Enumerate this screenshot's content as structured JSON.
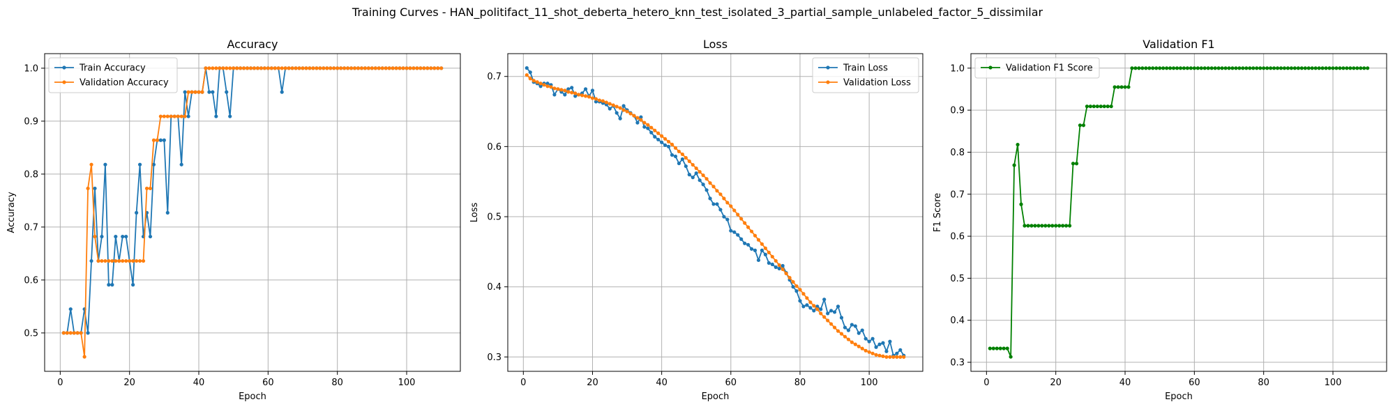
{
  "suptitle": "Training Curves - HAN_politifact_11_shot_deberta_hetero_knn_test_isolated_3_partial_sample_unlabeled_factor_5_dissimilar",
  "colors": {
    "train": "#1f77b4",
    "val": "#ff7f0e",
    "f1": "#008000",
    "grid": "#b0b0b0"
  },
  "chart_data": [
    {
      "type": "line",
      "title": "Accuracy",
      "xlabel": "Epoch",
      "ylabel": "Accuracy",
      "xlim": [
        -4.5,
        115.5
      ],
      "ylim": [
        0.4275,
        1.0275
      ],
      "xticks": [
        0,
        20,
        40,
        60,
        80,
        100
      ],
      "yticks": [
        0.5,
        0.6,
        0.7,
        0.8,
        0.9,
        1.0
      ],
      "ytick_labels": [
        "0.5",
        "0.6",
        "0.7",
        "0.8",
        "0.9",
        "1.0"
      ],
      "grid": true,
      "legend": "upper-left",
      "series": [
        {
          "name": "Train Accuracy",
          "color": "#1f77b4",
          "x_start": 1,
          "values": [
            0.5,
            0.5,
            0.545,
            0.5,
            0.5,
            0.5,
            0.545,
            0.5,
            0.636,
            0.773,
            0.636,
            0.682,
            0.818,
            0.591,
            0.591,
            0.682,
            0.636,
            0.682,
            0.682,
            0.636,
            0.591,
            0.727,
            0.818,
            0.682,
            0.727,
            0.682,
            0.818,
            0.864,
            0.864,
            0.864,
            0.727,
            0.909,
            0.909,
            0.909,
            0.818,
            0.955,
            0.909,
            0.955,
            0.955,
            0.955,
            0.955,
            1.0,
            0.955,
            0.955,
            0.909,
            1.0,
            1.0,
            0.955,
            0.909,
            1.0,
            1.0,
            1.0,
            1.0,
            1.0,
            1.0,
            1.0,
            1.0,
            1.0,
            1.0,
            1.0,
            1.0,
            1.0,
            1.0,
            0.955,
            1.0,
            1.0,
            1.0,
            1.0,
            1.0,
            1.0,
            1.0,
            1.0,
            1.0,
            1.0,
            1.0,
            1.0,
            1.0,
            1.0,
            1.0,
            1.0,
            1.0,
            1.0,
            1.0,
            1.0,
            1.0,
            1.0,
            1.0,
            1.0,
            1.0,
            1.0,
            1.0,
            1.0,
            1.0,
            1.0,
            1.0,
            1.0,
            1.0,
            1.0,
            1.0,
            1.0,
            1.0,
            1.0,
            1.0,
            1.0,
            1.0,
            1.0,
            1.0,
            1.0,
            1.0,
            1.0
          ]
        },
        {
          "name": "Validation Accuracy",
          "color": "#ff7f0e",
          "x_start": 1,
          "values": [
            0.5,
            0.5,
            0.5,
            0.5,
            0.5,
            0.5,
            0.455,
            0.773,
            0.818,
            0.682,
            0.636,
            0.636,
            0.636,
            0.636,
            0.636,
            0.636,
            0.636,
            0.636,
            0.636,
            0.636,
            0.636,
            0.636,
            0.636,
            0.636,
            0.773,
            0.773,
            0.864,
            0.864,
            0.909,
            0.909,
            0.909,
            0.909,
            0.909,
            0.909,
            0.909,
            0.909,
            0.955,
            0.955,
            0.955,
            0.955,
            0.955,
            1.0,
            1.0,
            1.0,
            1.0,
            1.0,
            1.0,
            1.0,
            1.0,
            1.0,
            1.0,
            1.0,
            1.0,
            1.0,
            1.0,
            1.0,
            1.0,
            1.0,
            1.0,
            1.0,
            1.0,
            1.0,
            1.0,
            1.0,
            1.0,
            1.0,
            1.0,
            1.0,
            1.0,
            1.0,
            1.0,
            1.0,
            1.0,
            1.0,
            1.0,
            1.0,
            1.0,
            1.0,
            1.0,
            1.0,
            1.0,
            1.0,
            1.0,
            1.0,
            1.0,
            1.0,
            1.0,
            1.0,
            1.0,
            1.0,
            1.0,
            1.0,
            1.0,
            1.0,
            1.0,
            1.0,
            1.0,
            1.0,
            1.0,
            1.0,
            1.0,
            1.0,
            1.0,
            1.0,
            1.0,
            1.0,
            1.0,
            1.0,
            1.0,
            1.0
          ]
        }
      ]
    },
    {
      "type": "line",
      "title": "Loss",
      "xlabel": "Epoch",
      "ylabel": "Loss",
      "xlim": [
        -4.5,
        115.5
      ],
      "ylim": [
        0.2795,
        0.7325
      ],
      "xticks": [
        0,
        20,
        40,
        60,
        80,
        100
      ],
      "yticks": [
        0.3,
        0.4,
        0.5,
        0.6,
        0.7
      ],
      "ytick_labels": [
        "0.3",
        "0.4",
        "0.5",
        "0.6",
        "0.7"
      ],
      "grid": true,
      "legend": "upper-right",
      "series": [
        {
          "name": "Train Loss",
          "color": "#1f77b4",
          "x_start": 1,
          "values": [
            0.712,
            0.706,
            0.692,
            0.69,
            0.686,
            0.69,
            0.69,
            0.688,
            0.674,
            0.682,
            0.678,
            0.674,
            0.682,
            0.684,
            0.672,
            0.674,
            0.676,
            0.682,
            0.672,
            0.68,
            0.664,
            0.664,
            0.662,
            0.66,
            0.654,
            0.658,
            0.648,
            0.64,
            0.658,
            0.652,
            0.648,
            0.644,
            0.634,
            0.642,
            0.628,
            0.626,
            0.62,
            0.614,
            0.61,
            0.606,
            0.602,
            0.6,
            0.588,
            0.586,
            0.576,
            0.582,
            0.572,
            0.56,
            0.556,
            0.562,
            0.552,
            0.546,
            0.538,
            0.526,
            0.518,
            0.518,
            0.51,
            0.5,
            0.496,
            0.48,
            0.478,
            0.474,
            0.468,
            0.462,
            0.46,
            0.454,
            0.452,
            0.438,
            0.452,
            0.446,
            0.434,
            0.432,
            0.428,
            0.426,
            0.43,
            0.42,
            0.41,
            0.4,
            0.394,
            0.38,
            0.372,
            0.374,
            0.37,
            0.366,
            0.372,
            0.368,
            0.382,
            0.362,
            0.366,
            0.364,
            0.372,
            0.356,
            0.342,
            0.338,
            0.346,
            0.344,
            0.334,
            0.338,
            0.326,
            0.322,
            0.326,
            0.314,
            0.318,
            0.32,
            0.308,
            0.322,
            0.302,
            0.305,
            0.31,
            0.302
          ]
        },
        {
          "name": "Validation Loss",
          "color": "#ff7f0e",
          "x_start": 1,
          "values": [
            0.702,
            0.697,
            0.694,
            0.692,
            0.69,
            0.688,
            0.686,
            0.685,
            0.683,
            0.682,
            0.681,
            0.68,
            0.678,
            0.677,
            0.676,
            0.674,
            0.673,
            0.672,
            0.671,
            0.669,
            0.668,
            0.666,
            0.665,
            0.663,
            0.661,
            0.659,
            0.657,
            0.655,
            0.652,
            0.65,
            0.647,
            0.644,
            0.641,
            0.638,
            0.634,
            0.631,
            0.627,
            0.623,
            0.619,
            0.615,
            0.611,
            0.607,
            0.603,
            0.598,
            0.593,
            0.589,
            0.584,
            0.579,
            0.574,
            0.569,
            0.564,
            0.559,
            0.554,
            0.548,
            0.543,
            0.537,
            0.532,
            0.526,
            0.52,
            0.515,
            0.509,
            0.503,
            0.497,
            0.491,
            0.485,
            0.479,
            0.473,
            0.467,
            0.461,
            0.455,
            0.449,
            0.443,
            0.437,
            0.431,
            0.425,
            0.419,
            0.413,
            0.407,
            0.401,
            0.396,
            0.39,
            0.384,
            0.378,
            0.373,
            0.368,
            0.362,
            0.357,
            0.352,
            0.347,
            0.342,
            0.337,
            0.333,
            0.329,
            0.325,
            0.321,
            0.318,
            0.315,
            0.312,
            0.309,
            0.307,
            0.305,
            0.303,
            0.302,
            0.301,
            0.3,
            0.3,
            0.3,
            0.3,
            0.3,
            0.3
          ]
        }
      ]
    },
    {
      "type": "line",
      "title": "Validation F1",
      "xlabel": "Epoch",
      "ylabel": "F1 Score",
      "xlim": [
        -4.5,
        115.5
      ],
      "ylim": [
        0.2785,
        1.0345
      ],
      "xticks": [
        0,
        20,
        40,
        60,
        80,
        100
      ],
      "yticks": [
        0.3,
        0.4,
        0.5,
        0.6,
        0.7,
        0.8,
        0.9,
        1.0
      ],
      "ytick_labels": [
        "0.3",
        "0.4",
        "0.5",
        "0.6",
        "0.7",
        "0.8",
        "0.9",
        "1.0"
      ],
      "grid": true,
      "legend": "upper-left",
      "series": [
        {
          "name": "Validation F1 Score",
          "color": "#008000",
          "x_start": 1,
          "values": [
            0.333,
            0.333,
            0.333,
            0.333,
            0.333,
            0.333,
            0.313,
            0.769,
            0.818,
            0.676,
            0.625,
            0.625,
            0.625,
            0.625,
            0.625,
            0.625,
            0.625,
            0.625,
            0.625,
            0.625,
            0.625,
            0.625,
            0.625,
            0.625,
            0.773,
            0.773,
            0.864,
            0.864,
            0.909,
            0.909,
            0.909,
            0.909,
            0.909,
            0.909,
            0.909,
            0.909,
            0.955,
            0.955,
            0.955,
            0.955,
            0.955,
            1.0,
            1.0,
            1.0,
            1.0,
            1.0,
            1.0,
            1.0,
            1.0,
            1.0,
            1.0,
            1.0,
            1.0,
            1.0,
            1.0,
            1.0,
            1.0,
            1.0,
            1.0,
            1.0,
            1.0,
            1.0,
            1.0,
            1.0,
            1.0,
            1.0,
            1.0,
            1.0,
            1.0,
            1.0,
            1.0,
            1.0,
            1.0,
            1.0,
            1.0,
            1.0,
            1.0,
            1.0,
            1.0,
            1.0,
            1.0,
            1.0,
            1.0,
            1.0,
            1.0,
            1.0,
            1.0,
            1.0,
            1.0,
            1.0,
            1.0,
            1.0,
            1.0,
            1.0,
            1.0,
            1.0,
            1.0,
            1.0,
            1.0,
            1.0,
            1.0,
            1.0,
            1.0,
            1.0,
            1.0,
            1.0,
            1.0,
            1.0,
            1.0,
            1.0
          ]
        }
      ]
    }
  ]
}
